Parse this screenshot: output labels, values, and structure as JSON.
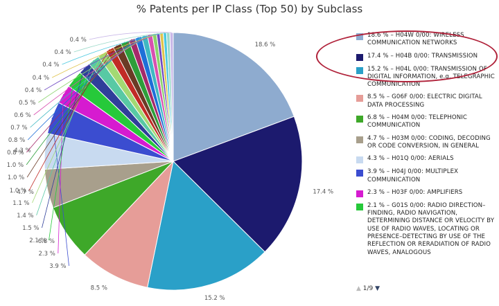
{
  "chart_data": {
    "type": "pie",
    "title": "% Patents per IP Class (Top 50) by Subclass",
    "slices": [
      {
        "label": "18.6 %",
        "value": 18.6,
        "color": "#8eabcf",
        "legend": "18.6 % – H04W 0/00: WIRELESS COMMUNICATION NETWORKS"
      },
      {
        "label": "17.4 %",
        "value": 17.4,
        "color": "#1c1a6e",
        "legend": "17.4 % – H04B 0/00: TRANSMISSION"
      },
      {
        "label": "15.2 %",
        "value": 15.2,
        "color": "#2aa0c8",
        "legend": "15.2 % – H04L 0/00: TRANSMISSION OF DIGITAL INFORMATION, e.g. TELEGRAPHIC COMMUNICATION"
      },
      {
        "label": "8.5 %",
        "value": 8.5,
        "color": "#e69d98",
        "legend": "8.5 % – G06F 0/00: ELECTRIC DIGITAL DATA PROCESSING"
      },
      {
        "label": "6.8 %",
        "value": 6.8,
        "color": "#3ea829",
        "legend": "6.8 % – H04M 0/00: TELEPHONIC COMMUNICATION"
      },
      {
        "label": "4.7 %",
        "value": 4.7,
        "color": "#a89f8c",
        "legend": "4.7 % – H03M 0/00: CODING, DECODING OR CODE CONVERSION, IN GENERAL"
      },
      {
        "label": "4.3 %",
        "value": 4.3,
        "color": "#c8daf0",
        "legend": "4.3 % – H01Q 0/00: AERIALS"
      },
      {
        "label": "3.9 %",
        "value": 3.9,
        "color": "#3b4dd0",
        "legend": "3.9 % – H04J 0/00: MULTIPLEX COMMUNICATION"
      },
      {
        "label": "2.3 %",
        "value": 2.3,
        "color": "#d61bd0",
        "legend": "2.3 % – H03F 0/00: AMPLIFIERS"
      },
      {
        "label": "2.1 %",
        "value": 2.1,
        "color": "#26c93a",
        "legend": "2.1 % – G01S 0/00: RADIO DIRECTION–FINDING, RADIO NAVIGATION, DETERMINING DISTANCE OR VELOCITY BY USE OF RADIO WAVES, LOCATING OR PRESENCE–DETECTING BY USE OF THE REFLECTION OR RERADIATION OF RADIO WAVES, ANALOGOUS"
      },
      {
        "label": "1.5 %",
        "value": 1.5,
        "color": "#2f3f9a",
        "legend": ""
      },
      {
        "label": "1.4 %",
        "value": 1.4,
        "color": "#58c9a4",
        "legend": ""
      },
      {
        "label": "1.1 %",
        "value": 1.1,
        "color": "#a3d973",
        "legend": ""
      },
      {
        "label": "1.0 %",
        "value": 1.0,
        "color": "#c12b26",
        "legend": ""
      },
      {
        "label": "1.0 %",
        "value": 1.0,
        "color": "#6b3a25",
        "legend": ""
      },
      {
        "label": "1.0 %",
        "value": 1.0,
        "color": "#2d9e3a",
        "legend": ""
      },
      {
        "label": "0.8 %",
        "value": 0.8,
        "color": "#a52a6a",
        "legend": ""
      },
      {
        "label": "0.8 %",
        "value": 0.8,
        "color": "#1e6fd8",
        "legend": ""
      },
      {
        "label": "0.7 %",
        "value": 0.7,
        "color": "#3fb8c2",
        "legend": ""
      },
      {
        "label": "0.6 %",
        "value": 0.6,
        "color": "#d84fb0",
        "legend": ""
      },
      {
        "label": "0.5 %",
        "value": 0.5,
        "color": "#8bd36c",
        "legend": ""
      },
      {
        "label": "0.4 %",
        "value": 0.4,
        "color": "#6f49c2",
        "legend": ""
      },
      {
        "label": "0.4 %",
        "value": 0.4,
        "color": "#e0c34a",
        "legend": ""
      },
      {
        "label": "0.4 %",
        "value": 0.4,
        "color": "#4cc9e0",
        "legend": ""
      },
      {
        "label": "0.4 %",
        "value": 0.4,
        "color": "#9ad9c9",
        "legend": ""
      },
      {
        "label": "0.4 %",
        "value": 0.4,
        "color": "#c9b8e8",
        "legend": ""
      }
    ],
    "legend_placement": "right",
    "legend_page": "1/9"
  }
}
